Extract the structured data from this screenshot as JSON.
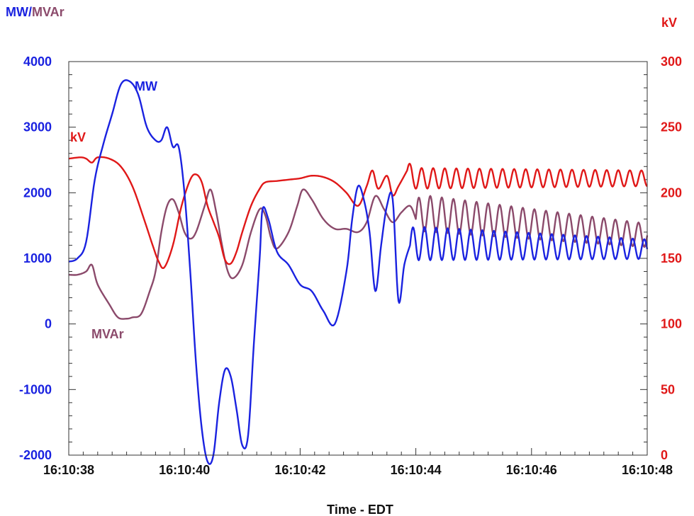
{
  "chart_data": {
    "type": "line",
    "ylabel_left_parts": [
      "MW",
      "/",
      "MVAr"
    ],
    "ylabel_right": "kV",
    "xlabel": "Time - EDT",
    "x_ticks": [
      "16:10:38",
      "16:10:40",
      "16:10:42",
      "16:10:44",
      "16:10:46",
      "16:10:48"
    ],
    "x_range_seconds": [
      38,
      48
    ],
    "y_left_ticks": [
      "4000",
      "3000",
      "2000",
      "1000",
      "0",
      "-1000",
      "-2000"
    ],
    "y_left_range": [
      -2000,
      4000
    ],
    "y_right_ticks": [
      "300",
      "250",
      "200",
      "150",
      "100",
      "50",
      "0"
    ],
    "y_right_range": [
      0,
      300
    ],
    "grid": false,
    "colors": {
      "MW": "#1a22e0",
      "MVAr": "#8b4a6b",
      "kV": "#e01818",
      "left_axis": "#1a22e0",
      "right_axis": "#e01818"
    },
    "annotations": [
      {
        "text": "MW",
        "series": "MW"
      },
      {
        "text": "kV",
        "series": "kV"
      },
      {
        "text": "MVAr",
        "series": "MVAr"
      }
    ],
    "series": [
      {
        "name": "MW",
        "axis": "left",
        "points": [
          [
            38.0,
            950
          ],
          [
            38.15,
            1000
          ],
          [
            38.3,
            1250
          ],
          [
            38.45,
            2200
          ],
          [
            38.6,
            2750
          ],
          [
            38.75,
            3200
          ],
          [
            38.9,
            3650
          ],
          [
            39.05,
            3700
          ],
          [
            39.2,
            3500
          ],
          [
            39.35,
            3000
          ],
          [
            39.5,
            2800
          ],
          [
            39.6,
            2800
          ],
          [
            39.7,
            3000
          ],
          [
            39.8,
            2700
          ],
          [
            39.9,
            2700
          ],
          [
            40.0,
            2000
          ],
          [
            40.1,
            800
          ],
          [
            40.2,
            -600
          ],
          [
            40.3,
            -1600
          ],
          [
            40.4,
            -2100
          ],
          [
            40.5,
            -2000
          ],
          [
            40.6,
            -1200
          ],
          [
            40.7,
            -700
          ],
          [
            40.8,
            -800
          ],
          [
            40.9,
            -1300
          ],
          [
            41.0,
            -1850
          ],
          [
            41.1,
            -1700
          ],
          [
            41.2,
            -300
          ],
          [
            41.3,
            1000
          ],
          [
            41.35,
            1750
          ],
          [
            41.45,
            1600
          ],
          [
            41.6,
            1100
          ],
          [
            41.8,
            900
          ],
          [
            42.0,
            600
          ],
          [
            42.2,
            500
          ],
          [
            42.4,
            200
          ],
          [
            42.6,
            0
          ],
          [
            42.8,
            800
          ],
          [
            42.9,
            1600
          ],
          [
            43.0,
            2100
          ],
          [
            43.1,
            1900
          ],
          [
            43.2,
            1400
          ],
          [
            43.3,
            500
          ],
          [
            43.4,
            1200
          ],
          [
            43.5,
            1800
          ],
          [
            43.6,
            1900
          ],
          [
            43.7,
            350
          ],
          [
            43.8,
            900
          ],
          [
            43.9,
            1200
          ]
        ],
        "oscillation": {
          "start": 43.9,
          "end": 48.0,
          "period": 0.2,
          "center_start": 1230,
          "center_end": 1140,
          "amp_start": 260,
          "amp_end": 150
        }
      },
      {
        "name": "MVAr",
        "axis": "left",
        "points": [
          [
            38.0,
            750
          ],
          [
            38.15,
            750
          ],
          [
            38.3,
            800
          ],
          [
            38.4,
            900
          ],
          [
            38.5,
            600
          ],
          [
            38.7,
            300
          ],
          [
            38.85,
            100
          ],
          [
            39.0,
            80
          ],
          [
            39.1,
            100
          ],
          [
            39.25,
            150
          ],
          [
            39.4,
            500
          ],
          [
            39.5,
            800
          ],
          [
            39.6,
            1400
          ],
          [
            39.7,
            1800
          ],
          [
            39.8,
            1900
          ],
          [
            39.9,
            1700
          ],
          [
            40.0,
            1400
          ],
          [
            40.1,
            1300
          ],
          [
            40.2,
            1400
          ],
          [
            40.35,
            1800
          ],
          [
            40.45,
            2050
          ],
          [
            40.55,
            1700
          ],
          [
            40.65,
            1200
          ],
          [
            40.75,
            800
          ],
          [
            40.85,
            700
          ],
          [
            41.0,
            900
          ],
          [
            41.15,
            1400
          ],
          [
            41.3,
            1750
          ],
          [
            41.4,
            1650
          ],
          [
            41.5,
            1300
          ],
          [
            41.6,
            1150
          ],
          [
            41.8,
            1400
          ],
          [
            41.95,
            1800
          ],
          [
            42.05,
            2050
          ],
          [
            42.2,
            1900
          ],
          [
            42.4,
            1600
          ],
          [
            42.6,
            1450
          ],
          [
            42.8,
            1450
          ],
          [
            43.0,
            1400
          ],
          [
            43.15,
            1550
          ],
          [
            43.3,
            1950
          ],
          [
            43.45,
            1750
          ],
          [
            43.6,
            1550
          ],
          [
            43.75,
            1700
          ],
          [
            43.9,
            1800
          ],
          [
            44.0,
            1600
          ]
        ],
        "oscillation": {
          "start": 44.0,
          "end": 48.0,
          "period": 0.2,
          "center_start": 1700,
          "center_end": 1350,
          "amp_start": 280,
          "amp_end": 180
        }
      },
      {
        "name": "kV",
        "axis": "right",
        "points": [
          [
            38.0,
            226
          ],
          [
            38.2,
            227
          ],
          [
            38.3,
            226
          ],
          [
            38.4,
            223
          ],
          [
            38.5,
            227
          ],
          [
            38.7,
            226
          ],
          [
            38.9,
            220
          ],
          [
            39.1,
            205
          ],
          [
            39.3,
            180
          ],
          [
            39.45,
            160
          ],
          [
            39.55,
            148
          ],
          [
            39.65,
            143
          ],
          [
            39.8,
            160
          ],
          [
            39.95,
            190
          ],
          [
            40.1,
            210
          ],
          [
            40.2,
            214
          ],
          [
            40.3,
            208
          ],
          [
            40.4,
            190
          ],
          [
            40.5,
            178
          ],
          [
            40.6,
            166
          ],
          [
            40.7,
            149
          ],
          [
            40.8,
            146
          ],
          [
            40.9,
            155
          ],
          [
            41.0,
            170
          ],
          [
            41.15,
            190
          ],
          [
            41.3,
            203
          ],
          [
            41.4,
            208
          ],
          [
            41.6,
            209
          ],
          [
            41.8,
            210
          ],
          [
            42.0,
            211
          ],
          [
            42.2,
            213
          ],
          [
            42.4,
            212
          ],
          [
            42.6,
            208
          ],
          [
            42.8,
            200
          ],
          [
            43.0,
            190
          ],
          [
            43.15,
            205
          ],
          [
            43.25,
            217
          ],
          [
            43.35,
            203
          ],
          [
            43.5,
            213
          ],
          [
            43.6,
            198
          ],
          [
            43.7,
            205
          ],
          [
            43.85,
            217
          ]
        ],
        "oscillation": {
          "start": 43.85,
          "end": 48.0,
          "period": 0.2,
          "center_start": 211,
          "center_end": 211,
          "amp_start": 8,
          "amp_end": 6
        }
      }
    ]
  }
}
